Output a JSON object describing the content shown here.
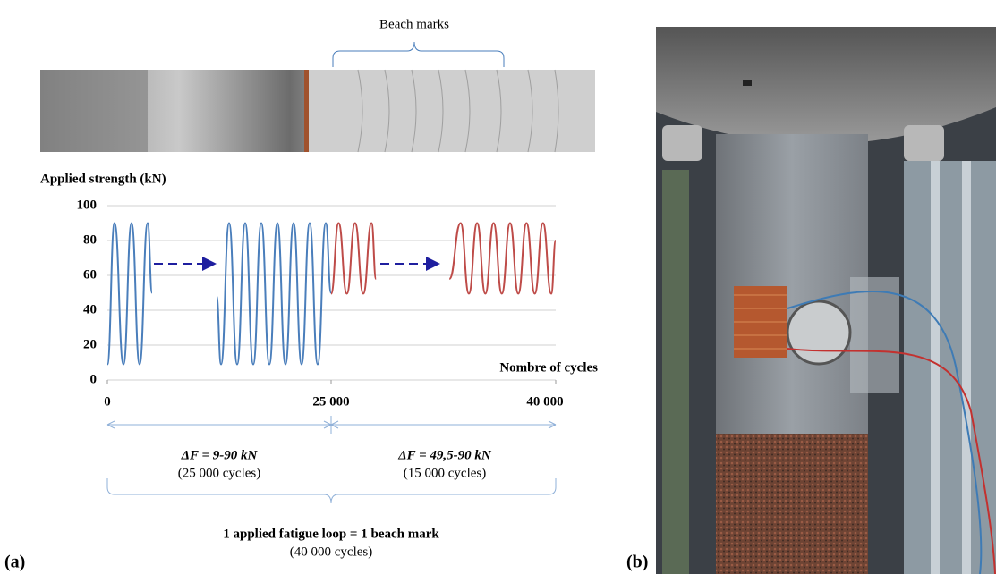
{
  "panel_a_label": "(a)",
  "panel_b_label": "(b)",
  "beach_marks_label": "Beach marks",
  "chart_data": {
    "type": "line",
    "y_label": "Applied strength (kN)",
    "x_label": "Nombre of cycles",
    "ylim": [
      0,
      100
    ],
    "yticks": [
      0,
      20,
      40,
      60,
      80,
      100
    ],
    "grid": true,
    "xlim": [
      0,
      40000
    ],
    "xticks": [
      0,
      {
        "value": 25000,
        "label": "25 000"
      },
      {
        "value": 40000,
        "label": "40 000"
      }
    ],
    "series": [
      {
        "color": "#4a7ebb",
        "x": [
          0,
          800,
          1800,
          2700,
          3600,
          4500,
          5000
        ],
        "values": [
          9,
          90,
          9,
          90,
          9,
          90,
          50
        ]
      },
      {
        "color": "#4a7ebb",
        "x": [
          12200,
          12700,
          13600,
          14500,
          15400,
          16300,
          17200,
          18100,
          19000,
          19900,
          20800,
          21700,
          22600,
          23500,
          24400,
          25000
        ],
        "values": [
          48,
          9,
          90,
          9,
          90,
          9,
          90,
          9,
          90,
          9,
          90,
          9,
          90,
          9,
          90,
          50
        ]
      },
      {
        "color": "#be4b48",
        "x": [
          25000,
          25500,
          26050,
          26600,
          27150,
          27700,
          28000
        ],
        "values": [
          49.5,
          90,
          49.5,
          90,
          49.5,
          90,
          58
        ]
      },
      {
        "color": "#be4b48",
        "x": [
          32900,
          33650,
          34200,
          34750,
          35300,
          35850,
          36400,
          36950,
          37500,
          38050,
          38600,
          39150,
          39700,
          40000
        ],
        "values": [
          58,
          90,
          49.5,
          90,
          49.5,
          90,
          49.5,
          90,
          49.5,
          90,
          49.5,
          90,
          49.5,
          80
        ]
      }
    ],
    "annotations": {
      "range_1": {
        "title": "ΔF = 9-90 kN",
        "cycles": "(25 000 cycles)"
      },
      "range_2": {
        "title": "ΔF = 49,5-90 kN",
        "cycles": "(15 000 cycles)"
      },
      "loop": {
        "title": "1 applied fatigue loop = 1 beach mark",
        "cycles": "(40 000 cycles)"
      }
    }
  }
}
